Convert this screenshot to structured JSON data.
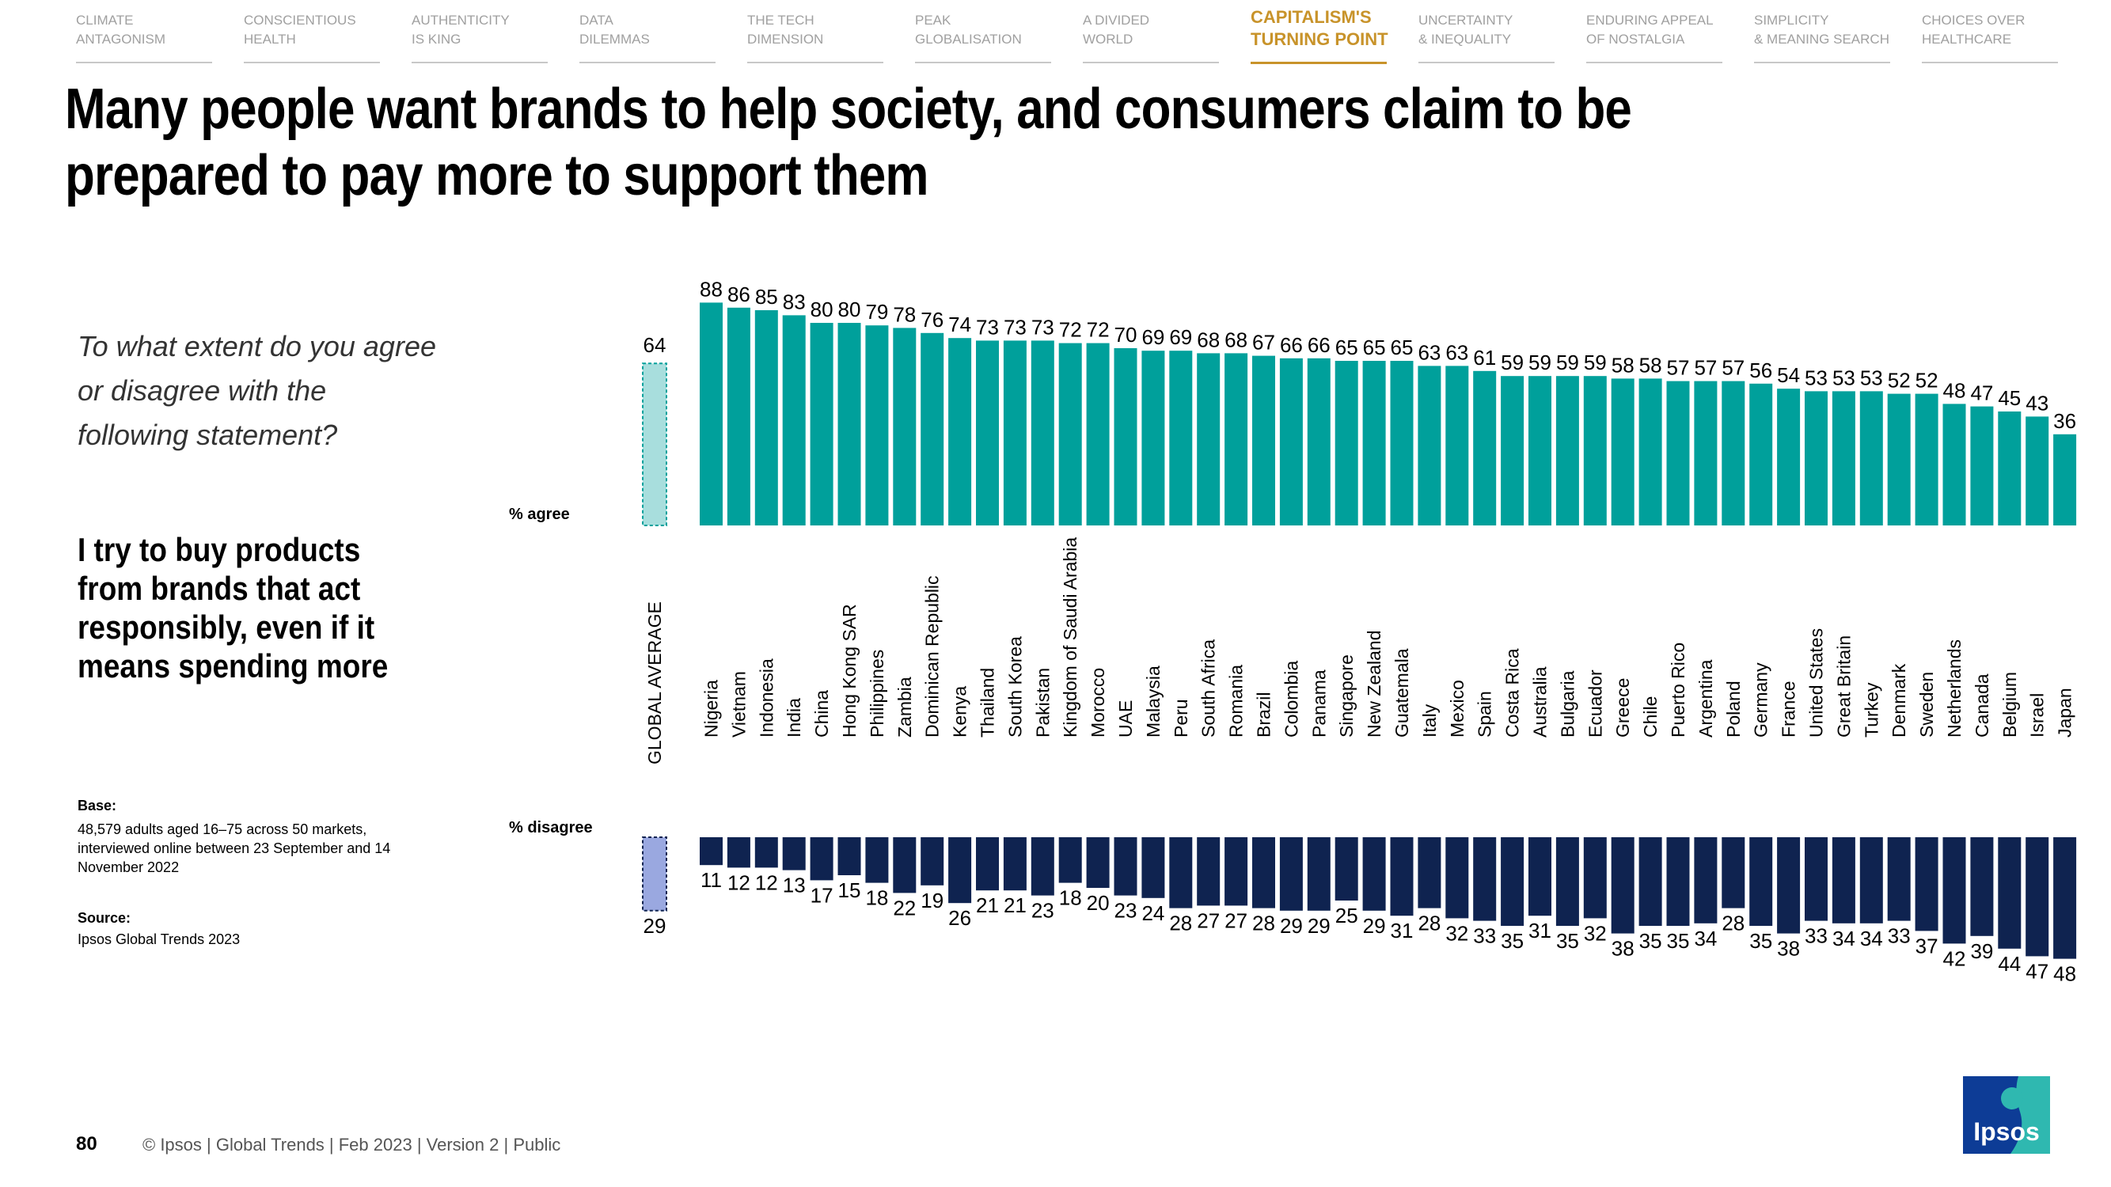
{
  "nav": {
    "items": [
      {
        "line1": "CLIMATE",
        "line2": "ANTAGONISM"
      },
      {
        "line1": "CONSCIENTIOUS",
        "line2": "HEALTH"
      },
      {
        "line1": "AUTHENTICITY",
        "line2": "IS KING"
      },
      {
        "line1": "DATA",
        "line2": "DILEMMAS"
      },
      {
        "line1": "THE TECH",
        "line2": "DIMENSION"
      },
      {
        "line1": "PEAK",
        "line2": "GLOBALISATION"
      },
      {
        "line1": "A DIVIDED",
        "line2": "WORLD"
      },
      {
        "line1": "CAPITALISM'S",
        "line2": "TURNING POINT"
      },
      {
        "line1": "UNCERTAINTY",
        "line2": "& INEQUALITY"
      },
      {
        "line1": "ENDURING APPEAL",
        "line2": "OF NOSTALGIA"
      },
      {
        "line1": "SIMPLICITY",
        "line2": "& MEANING SEARCH"
      },
      {
        "line1": "CHOICES OVER",
        "line2": "HEALTHCARE"
      }
    ],
    "active_index": 7
  },
  "title": "Many people want brands to help society, and consumers claim to be prepared to pay more to support them",
  "question": "To what extent do you agree or disagree with the following statement?",
  "statement": "I try to buy products from brands that act responsibly, even if it means spending more",
  "base": {
    "heading": "Base:",
    "text": "48,579 adults aged 16–75 across 50 markets, interviewed online between 23 September and 14 November 2022"
  },
  "source": {
    "heading": "Source:",
    "text": "Ipsos Global Trends 2023"
  },
  "footer": {
    "page_number": "80",
    "text": "© Ipsos | Global Trends | Feb 2023 | Version 2 | Public"
  },
  "logo": {
    "text": "Ipsos"
  },
  "colors": {
    "agree": "#00a09b",
    "agree_avg": "#a8dedd",
    "disagree": "#0f2350",
    "disagree_avg": "#9aa8e0",
    "active_nav": "#c8932a",
    "logo_bg": "#0d3c96",
    "logo_accent": "#2fb8b0"
  },
  "chart_data": {
    "type": "bar",
    "title": "I try to buy products from brands that act responsibly, even if it means spending more",
    "agree_label": "% agree",
    "disagree_label": "% disagree",
    "global_average": {
      "label": "GLOBAL AVERAGE",
      "agree": 64,
      "disagree": 29
    },
    "categories": [
      "Nigeria",
      "Vietnam",
      "Indonesia",
      "India",
      "China",
      "Hong Kong SAR",
      "Philippines",
      "Zambia",
      "Dominican Republic",
      "Kenya",
      "Thailand",
      "South Korea",
      "Pakistan",
      "Kingdom of Saudi Arabia",
      "Morocco",
      "UAE",
      "Malaysia",
      "Peru",
      "South Africa",
      "Romania",
      "Brazil",
      "Colombia",
      "Panama",
      "Singapore",
      "New Zealand",
      "Guatemala",
      "Italy",
      "Mexico",
      "Spain",
      "Costa Rica",
      "Australia",
      "Bulgaria",
      "Ecuador",
      "Greece",
      "Chile",
      "Puerto Rico",
      "Argentina",
      "Poland",
      "Germany",
      "France",
      "United States",
      "Great Britain",
      "Turkey",
      "Denmark",
      "Sweden",
      "Netherlands",
      "Canada",
      "Belgium",
      "Israel",
      "Japan"
    ],
    "series": [
      {
        "name": "% agree",
        "values": [
          88,
          86,
          85,
          83,
          80,
          80,
          79,
          78,
          76,
          74,
          73,
          73,
          73,
          72,
          72,
          70,
          69,
          69,
          68,
          68,
          67,
          66,
          66,
          65,
          65,
          65,
          63,
          63,
          61,
          59,
          59,
          59,
          59,
          58,
          58,
          57,
          57,
          57,
          56,
          54,
          53,
          53,
          53,
          52,
          52,
          48,
          47,
          45,
          43,
          36
        ]
      },
      {
        "name": "% disagree",
        "values": [
          11,
          12,
          12,
          13,
          17,
          15,
          18,
          22,
          19,
          26,
          21,
          21,
          23,
          18,
          20,
          23,
          24,
          28,
          27,
          27,
          28,
          29,
          29,
          25,
          29,
          31,
          28,
          32,
          33,
          35,
          31,
          35,
          32,
          38,
          35,
          35,
          34,
          28,
          35,
          38,
          33,
          34,
          34,
          33,
          37,
          42,
          39,
          44,
          47,
          48
        ]
      }
    ]
  }
}
